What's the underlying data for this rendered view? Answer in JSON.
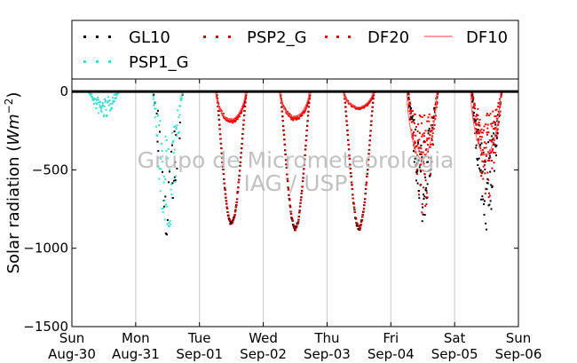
{
  "chart_data": {
    "type": "scatter",
    "ylabel": "Solar radiation (",
    "ylabel_unit": "Wm",
    "ylabel_exp": "−2",
    "ylabel_close": ")",
    "ylim": [
      -1500,
      80
    ],
    "yticks": [
      {
        "value": 0,
        "label": "0"
      },
      {
        "value": -500,
        "label": "−500"
      },
      {
        "value": -1000,
        "label": "−1000"
      },
      {
        "value": -1500,
        "label": "−1500"
      }
    ],
    "xlim_days": [
      0,
      7
    ],
    "xticks": [
      {
        "day": 0,
        "weekday": "Sun",
        "date": "Aug-30"
      },
      {
        "day": 1,
        "weekday": "Mon",
        "date": "Aug-31"
      },
      {
        "day": 2,
        "weekday": "Tue",
        "date": "Sep-01"
      },
      {
        "day": 3,
        "weekday": "Wed",
        "date": "Sep-02"
      },
      {
        "day": 4,
        "weekday": "Thu",
        "date": "Sep-03"
      },
      {
        "day": 5,
        "weekday": "Fri",
        "date": "Sep-04"
      },
      {
        "day": 6,
        "weekday": "Sat",
        "date": "Sep-05"
      },
      {
        "day": 7,
        "weekday": "Sun",
        "date": "Sep-06"
      }
    ],
    "grid": "vertical",
    "legend_placement": "top",
    "series": [
      {
        "name": "GL10",
        "style": "dots",
        "color": "#000000"
      },
      {
        "name": "PSP2_G",
        "style": "dots",
        "color": "#cc0000"
      },
      {
        "name": "DF20",
        "style": "dots",
        "color": "#ff0000"
      },
      {
        "name": "DF10",
        "style": "line",
        "color": "#ff6666"
      },
      {
        "name": "PSP1_G",
        "style": "dots",
        "color": "#40e0d0"
      }
    ],
    "daily_peaks": [
      {
        "day": 0,
        "GL10": -170,
        "PSP1_G": -170,
        "DF": null
      },
      {
        "day": 1,
        "GL10": -950,
        "PSP1_G": -930,
        "DF": null
      },
      {
        "day": 2,
        "GL10": -850,
        "PSP2_G": -850,
        "DF": -200
      },
      {
        "day": 3,
        "GL10": -880,
        "PSP2_G": -880,
        "DF": -180
      },
      {
        "day": 4,
        "GL10": -880,
        "PSP2_G": -880,
        "DF": -110
      },
      {
        "day": 5,
        "GL10": -830,
        "PSP2_G": -800,
        "DF": -480
      },
      {
        "day": 6,
        "GL10": -920,
        "PSP2_G": -700,
        "DF": -450
      }
    ]
  },
  "watermark": {
    "line1": "Grupo de Micrometeorologia",
    "line2": "IAG / USP"
  },
  "colors": {
    "gl10": "#000000",
    "psp2_g": "#cc0000",
    "df20": "#ff0000",
    "df10": "#ff6666",
    "psp1_g": "#40e0d0",
    "grid": "#c8c8c8"
  }
}
